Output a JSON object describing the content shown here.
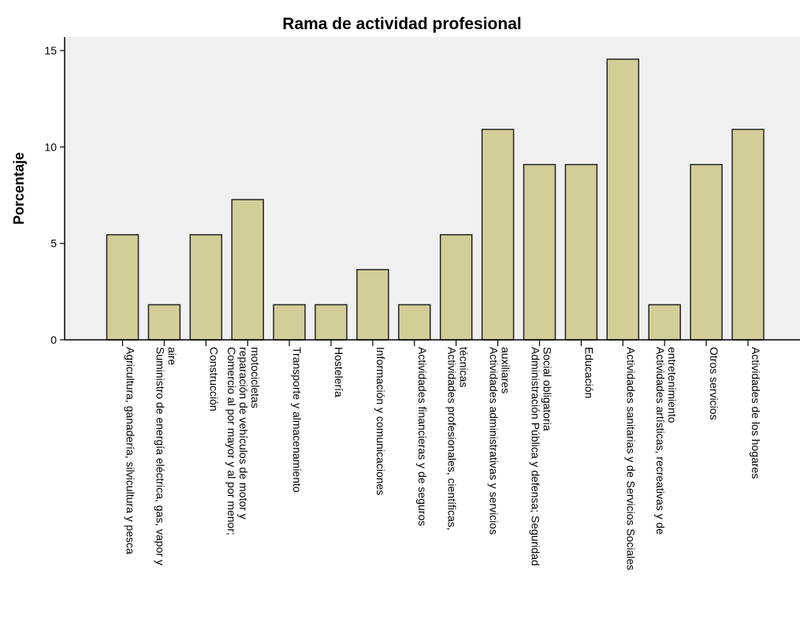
{
  "chart_data": {
    "type": "bar",
    "title": "Rama de actividad profesional",
    "xlabel": "",
    "ylabel": "Porcentaje",
    "ylim": [
      0,
      15.7
    ],
    "yticks": [
      0,
      5,
      10,
      15
    ],
    "grid": false,
    "categories": [
      [
        "Agricultura, ganadería, silvicultura y pesca"
      ],
      [
        "Suministro de energía eléctrica, gas, vapor y",
        "aire"
      ],
      [
        "Construcción"
      ],
      [
        "Comercio al por mayor y al por menor;",
        "reparación de vehículos de motor y",
        "motocicletas"
      ],
      [
        "Transporte y almacenamiento"
      ],
      [
        "Hostelería"
      ],
      [
        "Información y comunicaciones"
      ],
      [
        "Actividades financieras y de seguros"
      ],
      [
        "Actividades profesionales, científicas,",
        "técnicas"
      ],
      [
        "Actividades administrativas y servicios",
        "auxiliares"
      ],
      [
        "Administración Pública y defensa; Seguridad",
        "Social obligatoria"
      ],
      [
        "Educación"
      ],
      [
        "Actividades sanitarias y de Servicios Sociales"
      ],
      [
        "Actividades artísticas, recreativas y de",
        "entretenimiento"
      ],
      [
        "Otros servicios"
      ],
      [
        "Actividades de los hogares"
      ]
    ],
    "values": [
      5.45,
      1.82,
      5.45,
      7.27,
      1.82,
      1.82,
      3.64,
      1.82,
      5.45,
      10.91,
      9.09,
      9.09,
      14.55,
      1.82,
      9.09,
      10.91
    ],
    "colors": {
      "bar_fill": "#d3ce97",
      "bar_stroke": "#222222",
      "plot_bg": "#f0f0f0",
      "axis": "#000000"
    }
  }
}
